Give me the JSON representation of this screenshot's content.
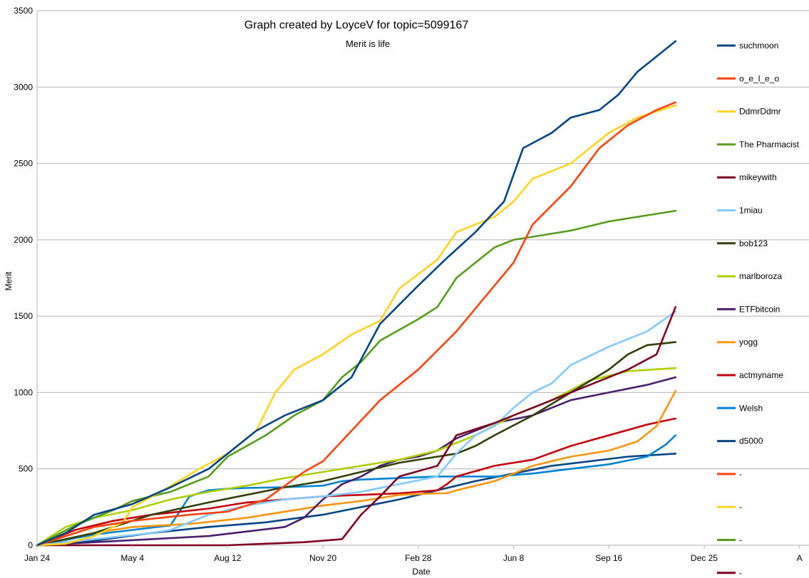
{
  "chart_data": {
    "type": "line",
    "title": "Graph created by LoyceV for topic=5099167",
    "subtitle": "Merit is life",
    "xlabel": "Date",
    "ylabel": "Merit",
    "ylim": [
      0,
      3500
    ],
    "yticks": [
      0,
      500,
      1000,
      1500,
      2000,
      2500,
      3000,
      3500
    ],
    "xlim": [
      0,
      810
    ],
    "xticks": [
      {
        "label": "Jan 24",
        "day": 0
      },
      {
        "label": "May 4",
        "day": 100
      },
      {
        "label": "Aug 12",
        "day": 200
      },
      {
        "label": "Nov 20",
        "day": 300
      },
      {
        "label": "Feb 28",
        "day": 400
      },
      {
        "label": "Jun 8",
        "day": 500
      },
      {
        "label": "Sep 16",
        "day": 600
      },
      {
        "label": "Dec 25",
        "day": 700
      },
      {
        "label": "A",
        "day": 800
      }
    ],
    "grid": true,
    "legend_position": "right",
    "series": [
      {
        "name": "suchmoon",
        "color": "#004586",
        "x": [
          0,
          30,
          60,
          100,
          140,
          180,
          200,
          230,
          260,
          300,
          330,
          360,
          400,
          430,
          460,
          490,
          510,
          540,
          560,
          590,
          610,
          630,
          660,
          670
        ],
        "values": [
          0,
          80,
          200,
          270,
          380,
          500,
          600,
          750,
          850,
          950,
          1100,
          1450,
          1700,
          1880,
          2050,
          2250,
          2600,
          2700,
          2800,
          2850,
          2950,
          3100,
          3250,
          3300
        ]
      },
      {
        "name": "o_e_l_e_o",
        "color": "#ff420e",
        "x": [
          0,
          60,
          100,
          160,
          200,
          240,
          280,
          300,
          330,
          360,
          400,
          440,
          480,
          500,
          520,
          560,
          590,
          620,
          650,
          670
        ],
        "values": [
          0,
          120,
          160,
          200,
          220,
          300,
          480,
          550,
          750,
          950,
          1150,
          1400,
          1700,
          1850,
          2100,
          2350,
          2600,
          2750,
          2850,
          2900
        ]
      },
      {
        "name": "DdmrDdmr",
        "color": "#ffd320",
        "x": [
          0,
          30,
          60,
          90,
          100,
          130,
          170,
          200,
          230,
          250,
          270,
          300,
          330,
          360,
          380,
          420,
          440,
          480,
          500,
          520,
          560,
          600,
          630,
          670
        ],
        "values": [
          0,
          10,
          60,
          150,
          250,
          350,
          500,
          600,
          750,
          1000,
          1150,
          1250,
          1380,
          1470,
          1680,
          1870,
          2050,
          2150,
          2250,
          2400,
          2500,
          2700,
          2800,
          2880
        ]
      },
      {
        "name": "The Pharmacist",
        "color": "#579d1c",
        "x": [
          0,
          40,
          80,
          100,
          140,
          180,
          200,
          240,
          270,
          300,
          320,
          340,
          360,
          400,
          420,
          440,
          460,
          480,
          500,
          520,
          560,
          600,
          640,
          670
        ],
        "values": [
          0,
          130,
          230,
          290,
          350,
          450,
          580,
          720,
          850,
          950,
          1100,
          1200,
          1340,
          1480,
          1560,
          1750,
          1850,
          1950,
          2000,
          2020,
          2060,
          2120,
          2160,
          2190
        ]
      },
      {
        "name": "mikeywith",
        "color": "#7e0021",
        "x": [
          0,
          100,
          200,
          280,
          320,
          340,
          360,
          380,
          420,
          440,
          480,
          500,
          540,
          580,
          620,
          650,
          670
        ],
        "values": [
          0,
          0,
          0,
          20,
          40,
          200,
          320,
          450,
          520,
          720,
          800,
          850,
          950,
          1050,
          1150,
          1250,
          1560
        ]
      },
      {
        "name": "1miau",
        "color": "#83caff",
        "x": [
          0,
          60,
          120,
          140,
          180,
          220,
          260,
          300,
          340,
          380,
          420,
          440,
          460,
          480,
          500,
          520,
          540,
          560,
          600,
          640,
          670
        ],
        "values": [
          0,
          40,
          80,
          100,
          200,
          260,
          300,
          320,
          350,
          400,
          450,
          600,
          720,
          780,
          900,
          1000,
          1060,
          1180,
          1300,
          1400,
          1530
        ]
      },
      {
        "name": "bob123",
        "color": "#314004",
        "x": [
          0,
          60,
          120,
          180,
          220,
          260,
          300,
          340,
          380,
          420,
          440,
          460,
          480,
          520,
          560,
          600,
          620,
          640,
          670
        ],
        "values": [
          0,
          80,
          200,
          280,
          330,
          380,
          420,
          480,
          540,
          580,
          600,
          650,
          720,
          850,
          1000,
          1150,
          1250,
          1310,
          1330
        ]
      },
      {
        "name": "marlboroza",
        "color": "#aecf00",
        "x": [
          0,
          30,
          60,
          100,
          140,
          180,
          220,
          260,
          300,
          340,
          380,
          420,
          460,
          500,
          540,
          580,
          620,
          670
        ],
        "values": [
          0,
          120,
          180,
          230,
          300,
          350,
          390,
          440,
          480,
          520,
          560,
          620,
          720,
          850,
          950,
          1080,
          1140,
          1160
        ]
      },
      {
        "name": "ETFbitcoin",
        "color": "#4b1f6f",
        "x": [
          0,
          60,
          120,
          180,
          220,
          260,
          280,
          300,
          320,
          340,
          360,
          380,
          400,
          420,
          440,
          460,
          480,
          520,
          560,
          600,
          640,
          670
        ],
        "values": [
          0,
          20,
          40,
          60,
          90,
          120,
          180,
          300,
          400,
          450,
          520,
          560,
          580,
          620,
          700,
          750,
          800,
          850,
          950,
          1000,
          1050,
          1100
        ]
      },
      {
        "name": "yogg",
        "color": "#ff950e",
        "x": [
          0,
          60,
          100,
          160,
          220,
          260,
          300,
          340,
          380,
          420,
          430,
          440,
          480,
          520,
          560,
          600,
          630,
          650,
          670
        ],
        "values": [
          0,
          80,
          120,
          140,
          180,
          220,
          260,
          290,
          330,
          340,
          340,
          360,
          420,
          520,
          580,
          620,
          680,
          780,
          1010
        ]
      },
      {
        "name": "actmyname",
        "color": "#c5000b",
        "x": [
          0,
          40,
          80,
          120,
          180,
          220,
          260,
          300,
          340,
          380,
          420,
          430,
          440,
          480,
          520,
          560,
          600,
          640,
          670
        ],
        "values": [
          0,
          100,
          160,
          200,
          240,
          280,
          300,
          320,
          330,
          340,
          360,
          400,
          450,
          520,
          560,
          650,
          720,
          790,
          830
        ]
      },
      {
        "name": "Welsh",
        "color": "#0084d1",
        "x": [
          0,
          60,
          100,
          140,
          160,
          180,
          200,
          220,
          260,
          300,
          320,
          340,
          380,
          420,
          440,
          480,
          520,
          560,
          600,
          640,
          660,
          670
        ],
        "values": [
          0,
          70,
          100,
          130,
          320,
          360,
          370,
          375,
          380,
          390,
          420,
          430,
          440,
          450,
          450,
          450,
          470,
          500,
          530,
          580,
          660,
          720
        ]
      },
      {
        "name": "d5000",
        "color": "#004586",
        "x": [
          0,
          60,
          120,
          180,
          240,
          300,
          340,
          380,
          420,
          460,
          500,
          540,
          580,
          620,
          670
        ],
        "values": [
          0,
          30,
          80,
          120,
          150,
          200,
          250,
          300,
          360,
          420,
          470,
          520,
          550,
          580,
          600
        ]
      },
      {
        "name": "-",
        "color": "#ff420e",
        "x": [],
        "values": []
      },
      {
        "name": "-",
        "color": "#ffd320",
        "x": [],
        "values": []
      },
      {
        "name": "-",
        "color": "#579d1c",
        "x": [],
        "values": []
      },
      {
        "name": "-",
        "color": "#7e0021",
        "x": [],
        "values": []
      }
    ]
  }
}
